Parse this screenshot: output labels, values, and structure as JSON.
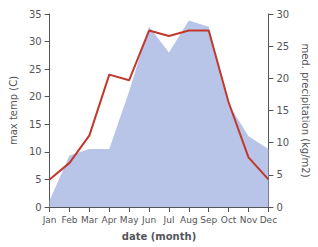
{
  "chart_data": {
    "type": "line",
    "xlabel": "date (month)",
    "ylabel": "max temp (C)",
    "y2label": "med. precipitation (kg/m2)",
    "categories": [
      "Jan",
      "Feb",
      "Mar",
      "Apr",
      "May",
      "Jun",
      "Jul",
      "Aug",
      "Sep",
      "Oct",
      "Nov",
      "Dec"
    ],
    "series": [
      {
        "type": "area",
        "color": "#b8c4e8",
        "axis": "y2",
        "values": [
          1,
          8,
          9,
          9,
          18,
          28,
          24,
          29,
          28,
          16,
          11,
          9
        ]
      },
      {
        "type": "line",
        "color": "#c0392b",
        "values": [
          5,
          8,
          13,
          24,
          23,
          32,
          31,
          32,
          32,
          19,
          9,
          5
        ]
      }
    ],
    "ylim": [
      0,
      35
    ],
    "yticks": [
      0,
      5,
      10,
      15,
      20,
      25,
      30,
      35
    ],
    "y2lim": [
      0,
      30
    ],
    "y2ticks": [
      0,
      5,
      10,
      15,
      20,
      25,
      30
    ],
    "grid": false
  }
}
